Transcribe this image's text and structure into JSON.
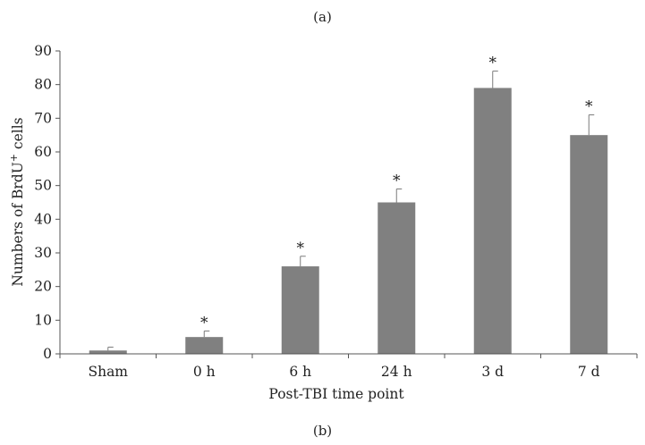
{
  "figure": {
    "top_label": "(a)",
    "bottom_label": "(b)"
  },
  "chart_data": {
    "type": "bar",
    "categories": [
      "Sham",
      "0 h",
      "6 h",
      "24 h",
      "3 d",
      "7 d"
    ],
    "values": [
      1,
      5,
      26,
      45,
      79,
      65
    ],
    "errors": [
      1,
      1.8,
      3,
      4,
      5,
      6
    ],
    "significance": [
      "",
      "*",
      "*",
      "*",
      "*",
      "*"
    ],
    "title": "",
    "xlabel": "Post-TBI time point",
    "ylabel": "Numbers of BrdU+ cells",
    "ylabel_parts": {
      "before": "Numbers of BrdU",
      "superscript": "+",
      "after": " cells"
    },
    "ylim": [
      0,
      90
    ],
    "yticks": [
      0,
      10,
      20,
      30,
      40,
      50,
      60,
      70,
      80,
      90
    ],
    "grid": false,
    "bar_color": "#808080",
    "error_color": "#7a7a7a"
  }
}
